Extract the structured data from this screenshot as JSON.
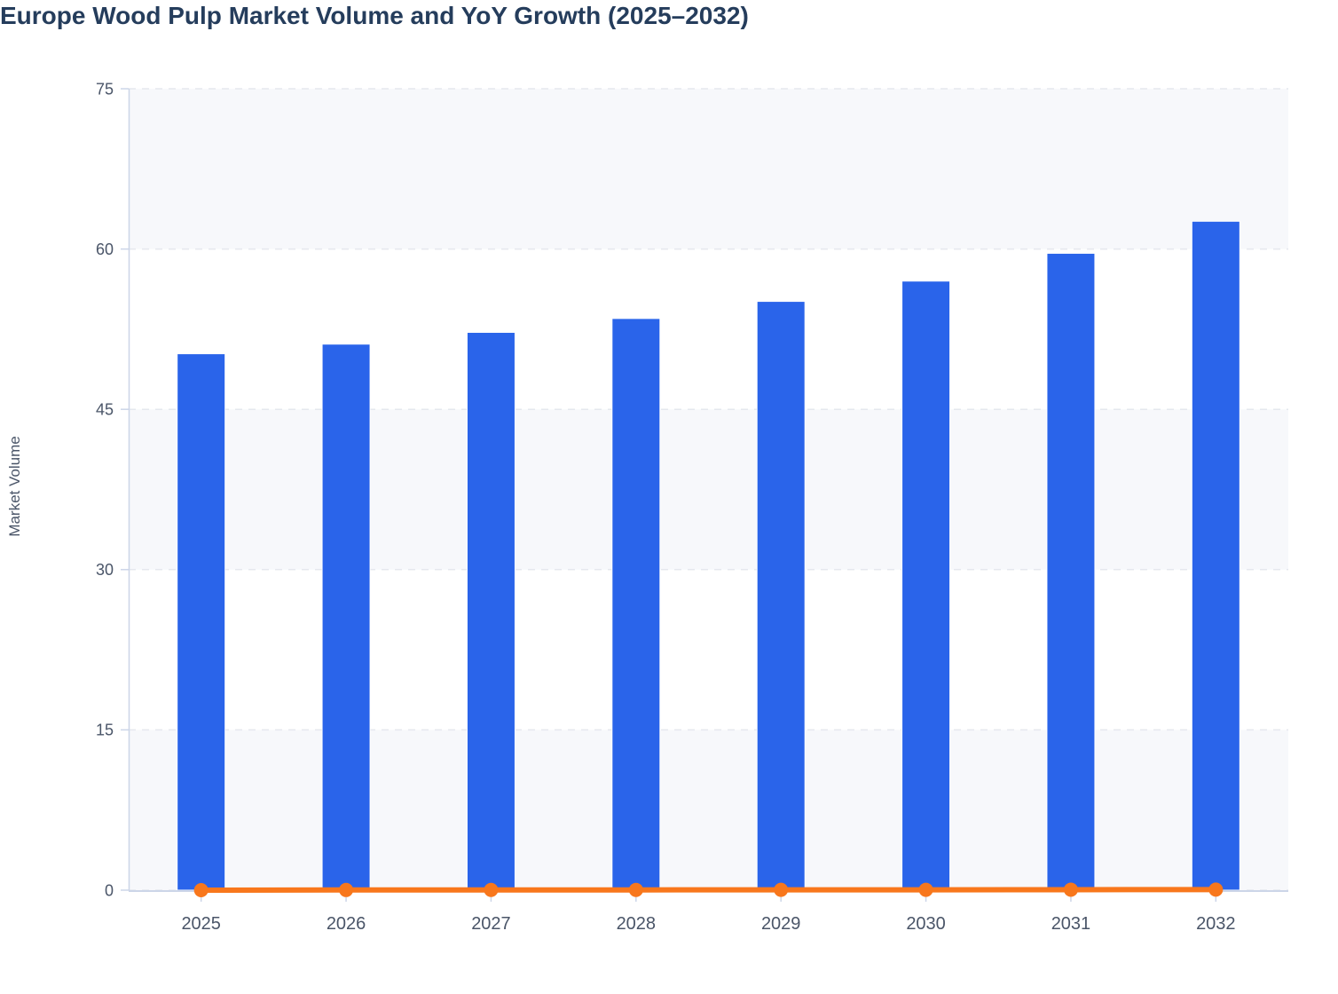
{
  "chart_data": {
    "type": "bar",
    "title": "Europe Wood Pulp Market Volume and YoY Growth (2025–2032)",
    "ylabel": "Market Volume",
    "xlabel": "",
    "categories": [
      "2025",
      "2026",
      "2027",
      "2028",
      "2029",
      "2030",
      "2031",
      "2032"
    ],
    "series": [
      {
        "name": "Market Volume",
        "type": "column",
        "color": "#2a64ea",
        "values": [
          50.2,
          51.1,
          52.2,
          53.5,
          55.1,
          57.0,
          59.6,
          62.6
        ]
      },
      {
        "name": "YoY Growth",
        "type": "line",
        "color": "#f8771c",
        "values": [
          0,
          0.018,
          0.022,
          0.025,
          0.03,
          0.034,
          0.046,
          0.05
        ]
      }
    ],
    "ylim": [
      0,
      75
    ],
    "yticks": [
      0,
      15,
      30,
      45,
      60,
      75
    ],
    "grid": "horizontal-dashed",
    "alternate_bands": [
      [
        0,
        15
      ],
      [
        30,
        45
      ],
      [
        60,
        75
      ]
    ],
    "legend_position": "none"
  },
  "style": {
    "bar_color": "#2a64ea",
    "line_color": "#f8771c",
    "title_color": "#253d5c",
    "axis_text_color": "#4a5568",
    "axis_line_color": "#ccd5e8",
    "grid_color": "#e5e8ee",
    "band_color": "#f7f8fb",
    "background": "#ffffff"
  }
}
